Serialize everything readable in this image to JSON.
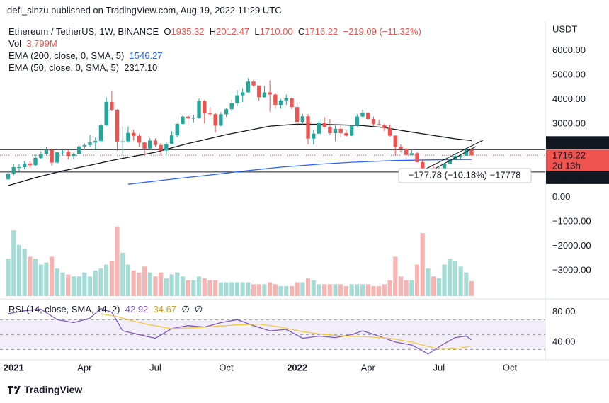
{
  "header": {
    "text": "defi_sinzu published on TradingView.com, Aug 19, 2022 11:29 UTC"
  },
  "legend": {
    "symbol": "Ethereum / TetherUS, 1W, BINANCE",
    "ohlc": [
      {
        "key": "O",
        "value": "1935.32"
      },
      {
        "key": "H",
        "value": "2012.47"
      },
      {
        "key": "L",
        "value": "1710.00"
      },
      {
        "key": "C",
        "value": "1716.22"
      }
    ],
    "change": "−219.09 (−11.32%)"
  },
  "footer": {
    "brand": "TradingView"
  },
  "chart_data": [
    {
      "type": "candlestick",
      "unit": "USDT",
      "up_color": "#26a69a",
      "down_color": "#ef5350",
      "open": [
        737,
        975,
        1229,
        1231,
        1380,
        1313,
        1613,
        1780,
        1935,
        1416,
        1835,
        1870,
        1690,
        1780,
        2080,
        2135,
        2240,
        2300,
        2950,
        3900,
        3580,
        2280,
        2290,
        2630,
        2510,
        2240,
        1990,
        2320,
        2140,
        1910,
        2190,
        2530,
        3000,
        3300,
        3225,
        3245,
        3940,
        3430,
        3400,
        2930,
        3390,
        3600,
        3850,
        4170,
        4290,
        4730,
        4570,
        4090,
        4290,
        4200,
        3780,
        3960,
        4050,
        3690,
        3080,
        3310,
        2400,
        2600,
        3040,
        2880,
        2620,
        2800,
        2620,
        2520,
        2920,
        3300,
        3450,
        3200,
        2990,
        2960,
        2830,
        2520,
        2060,
        1980,
        1730,
        1800,
        1440,
        1130,
        1140,
        1070,
        1160,
        1350,
        1550,
        1690,
        1700,
        1935.32
      ],
      "high": [
        1050,
        1350,
        1350,
        1480,
        1470,
        1760,
        1880,
        2040,
        2000,
        1870,
        1950,
        1940,
        1830,
        2150,
        2200,
        2550,
        2440,
        2990,
        4080,
        4370,
        3600,
        2900,
        2900,
        2760,
        2590,
        2280,
        2420,
        2410,
        2230,
        2270,
        2700,
        3020,
        3330,
        3350,
        3370,
        4030,
        3980,
        3680,
        3440,
        3480,
        3650,
        3990,
        4380,
        4460,
        4870,
        4810,
        4580,
        4550,
        4780,
        4240,
        4020,
        4200,
        4080,
        3840,
        3410,
        3400,
        2740,
        3200,
        3280,
        3200,
        2990,
        2980,
        2750,
        2950,
        3400,
        3580,
        3480,
        3300,
        3180,
        3010,
        2980,
        2530,
        2160,
        2020,
        1960,
        1850,
        1520,
        1230,
        1280,
        1230,
        1380,
        1660,
        1790,
        1720,
        2020,
        2012.47
      ],
      "low": [
        710,
        900,
        1050,
        1150,
        1210,
        1270,
        1560,
        1710,
        1290,
        1370,
        1700,
        1550,
        1560,
        1720,
        1940,
        2070,
        1950,
        2250,
        2900,
        3520,
        1900,
        1730,
        2250,
        2320,
        2050,
        1700,
        1920,
        2040,
        1730,
        1720,
        2180,
        2450,
        2980,
        2950,
        3060,
        3210,
        3020,
        3300,
        2650,
        2900,
        3290,
        3510,
        3730,
        3900,
        4280,
        4510,
        3940,
        4070,
        3500,
        3650,
        3630,
        3780,
        3600,
        2930,
        2980,
        2160,
        2160,
        2590,
        2850,
        2550,
        2300,
        2440,
        2480,
        2500,
        2890,
        3280,
        3150,
        2890,
        2930,
        2700,
        2480,
        1700,
        1840,
        1700,
        1720,
        1420,
        880,
        1000,
        1000,
        1040,
        1050,
        1340,
        1530,
        1560,
        1690,
        1710
      ],
      "close": [
        975,
        1229,
        1231,
        1380,
        1313,
        1613,
        1780,
        1935,
        1416,
        1835,
        1870,
        1690,
        1780,
        2080,
        2135,
        2240,
        2300,
        2950,
        3900,
        3580,
        2280,
        2290,
        2630,
        2510,
        2240,
        1990,
        2320,
        2140,
        1910,
        2190,
        2530,
        3000,
        3300,
        3225,
        3245,
        3940,
        3430,
        3400,
        2930,
        3390,
        3600,
        3850,
        4170,
        4290,
        4730,
        4570,
        4090,
        4290,
        4200,
        3780,
        3960,
        4050,
        3690,
        3080,
        3310,
        2400,
        2600,
        3040,
        2880,
        2620,
        2800,
        2620,
        2520,
        2920,
        3300,
        3450,
        3200,
        2990,
        2960,
        2830,
        2520,
        2060,
        1980,
        1730,
        1800,
        1440,
        1130,
        1140,
        1070,
        1160,
        1350,
        1550,
        1690,
        1700,
        1935.32,
        1716.22
      ],
      "volume": {
        "name": "Vol",
        "value_label": "3.799M",
        "up_color": "#a5dcd5",
        "down_color": "#f8b4b2",
        "ylim": [
          0,
          18
        ],
        "values": [
          9.5,
          16.7,
          13,
          12,
          10,
          9.5,
          8,
          8.5,
          10,
          7,
          6,
          5.5,
          5,
          5,
          6,
          5,
          6.5,
          7,
          8,
          9,
          17.7,
          11,
          8,
          6.5,
          6,
          7.5,
          6,
          5,
          6,
          4.5,
          5.5,
          6,
          5,
          4,
          4,
          5,
          4.5,
          4,
          4,
          3.5,
          3.5,
          3.5,
          3.5,
          3.5,
          3.5,
          3,
          3,
          3,
          3.5,
          3,
          2.5,
          2.5,
          2.5,
          3.5,
          3.5,
          4.5,
          4,
          3,
          3,
          3,
          3,
          3,
          2.5,
          3,
          3,
          3,
          3,
          2.5,
          2.5,
          3,
          4,
          10,
          5,
          4,
          4,
          8,
          16,
          7,
          5,
          4.5,
          8,
          9.5,
          9,
          7.5,
          6,
          3.799
        ]
      },
      "series": [
        {
          "name": "EMA (200, close, 0, SMA, 5)",
          "color": "#2962ff",
          "legend_value": "1546.27",
          "x": [
            22,
            30,
            37,
            44,
            50,
            57,
            63,
            71,
            78,
            85
          ],
          "values": [
            530,
            740,
            910,
            1090,
            1230,
            1350,
            1430,
            1500,
            1530,
            1546.27
          ]
        },
        {
          "name": "EMA (50, close, 0, SMA, 5)",
          "color": "#131722",
          "legend_value": "2317.10",
          "x": [
            0,
            5,
            10,
            14,
            20,
            27,
            33,
            40,
            48,
            53,
            58,
            61,
            65,
            69,
            73,
            77,
            82,
            85
          ],
          "values": [
            475,
            800,
            1080,
            1260,
            1550,
            1840,
            2200,
            2560,
            2910,
            2990,
            2980,
            2960,
            2930,
            2850,
            2700,
            2560,
            2390,
            2317.1
          ]
        }
      ],
      "xlim": [
        -1.5,
        98.5
      ],
      "xticks": [
        {
          "value": 1,
          "label": "2021"
        },
        {
          "value": 14,
          "label": "Apr"
        },
        {
          "value": 27,
          "label": "Jul"
        },
        {
          "value": 40,
          "label": "Oct"
        },
        {
          "value": 53,
          "label": "2022"
        },
        {
          "value": 66,
          "label": "Apr"
        },
        {
          "value": 79,
          "label": "Jul"
        },
        {
          "value": 92,
          "label": "Oct"
        }
      ],
      "ylim": [
        -4100,
        7200
      ],
      "yticks": [
        {
          "value": 6000,
          "label": "6000.00"
        },
        {
          "value": 5000,
          "label": "5000.00"
        },
        {
          "value": 4000,
          "label": "4000.00"
        },
        {
          "value": 3000,
          "label": "3000.00"
        },
        {
          "value": 0,
          "label": "0.00"
        },
        {
          "value": -1000,
          "label": "−1000.00"
        },
        {
          "value": -2000,
          "label": "−2000.00"
        },
        {
          "value": -3000,
          "label": "−3000.00"
        }
      ],
      "levels": [
        1946.79,
        1032.87
      ],
      "last_price": 1716.22,
      "countdown": "2d 13h",
      "measure": "−177.78 (−10.18%) −17778"
    },
    {
      "type": "line",
      "title": "RSI (14, close, SMA, 14, 2)",
      "flags": [
        "∅",
        "∅"
      ],
      "series": [
        {
          "color": "#7e57c2",
          "legend_value": "42.92",
          "x": [
            0,
            3,
            6,
            9,
            12,
            15,
            17,
            19,
            21,
            24,
            27,
            30,
            33,
            36,
            39,
            42,
            45,
            48,
            51,
            54,
            57,
            60,
            63,
            65,
            68,
            71,
            74,
            77,
            80,
            82,
            84,
            85
          ],
          "values": [
            78,
            82,
            84,
            70,
            66,
            72,
            85,
            80,
            55,
            50,
            45,
            58,
            62,
            60,
            66,
            70,
            62,
            55,
            57,
            45,
            48,
            46,
            50,
            55,
            48,
            40,
            36,
            24,
            38,
            46,
            48,
            42.92
          ]
        },
        {
          "color": "#f5c842",
          "legend_value": "34.67",
          "x": [
            17,
            20,
            23,
            26,
            30,
            34,
            38,
            42,
            46,
            50,
            54,
            58,
            62,
            66,
            70,
            74,
            78,
            82,
            85
          ],
          "values": [
            78,
            74,
            68,
            63,
            58,
            59,
            61,
            63,
            64,
            60,
            54,
            50,
            48,
            47,
            45,
            40,
            32,
            31,
            34.67
          ]
        }
      ],
      "ylim": [
        19,
        95
      ],
      "yticks": [
        {
          "value": 80,
          "label": "80.00"
        },
        {
          "value": 40,
          "label": "40.00"
        }
      ],
      "levels": [
        70,
        50,
        30
      ]
    }
  ]
}
